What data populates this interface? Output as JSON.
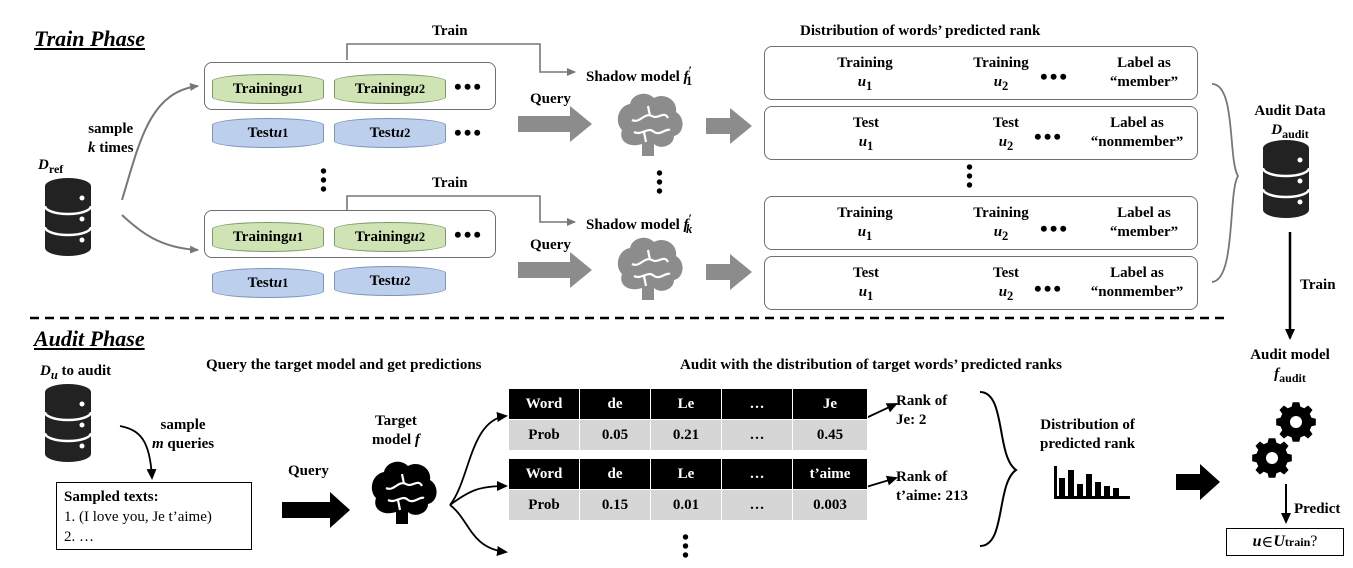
{
  "phases": {
    "train": "Train Phase",
    "audit": "Audit Phase"
  },
  "train": {
    "d_ref": "D",
    "d_ref_sub": "ref",
    "sample_line1": "sample",
    "sample_line2_var": "k",
    "sample_line2_rest": " times",
    "train_label": "Train",
    "query_label": "Query",
    "training_u1": "Training ",
    "training_u2": "Training ",
    "test_u1": "Test ",
    "test_u2": "Test ",
    "u_var": "u",
    "sub1": "1",
    "sub2": "2",
    "ellipsis": "•••",
    "shadow_model": "Shadow model ",
    "shadow_f": "f",
    "shadow_prime": "′",
    "shadow_sub1": "1",
    "shadow_subk": "k",
    "dist_title": "Distribution of words’ predicted rank",
    "rows": [
      {
        "w1": "Training",
        "w2": "Training",
        "lab1": "Label as",
        "lab2": "“member”"
      },
      {
        "w1": "Test",
        "w2": "Test",
        "lab1": "Label as",
        "lab2": "“nonmember”"
      },
      {
        "w1": "Training",
        "w2": "Training",
        "lab1": "Label as",
        "lab2": "“member”"
      },
      {
        "w1": "Test",
        "w2": "Test",
        "lab1": "Label as",
        "lab2": "“nonmember”"
      }
    ],
    "audit_data": "Audit Data",
    "audit_data_d": "D",
    "audit_data_sub": "audit",
    "train_arrow": "Train"
  },
  "audit": {
    "du": "D",
    "du_sub": "u",
    "du_rest": " to audit",
    "sample_line1": "sample",
    "sample_line2_var": "m",
    "sample_line2_rest": " queries",
    "sampled_title": "Sampled texts:",
    "sampled_1": "1. (I love you, Je t’aime)",
    "sampled_2": "2. …",
    "query": "Query",
    "target_line1": "Target",
    "target_line2": "model ",
    "target_f": "f",
    "query_heading": "Query the target model and get predictions",
    "audit_heading": "Audit with the distribution of target words’ predicted ranks",
    "table1": {
      "header": [
        "Word",
        "de",
        "Le",
        "…",
        "Je"
      ],
      "values": [
        "Prob",
        "0.05",
        "0.21",
        "…",
        "0.45"
      ]
    },
    "table2": {
      "header": [
        "Word",
        "de",
        "Le",
        "…",
        "t’aime"
      ],
      "values": [
        "Prob",
        "0.15",
        "0.01",
        "…",
        "0.003"
      ]
    },
    "rank1_line1": "Rank of",
    "rank1_line2": "Je: 2",
    "rank2_line1": "Rank of",
    "rank2_line2": "t’aime: 213",
    "dist_line1": "Distribution of",
    "dist_line2": "predicted rank",
    "audit_model": "Audit model",
    "audit_model_f": "f",
    "audit_model_sub": "audit",
    "predict": "Predict",
    "result_u": "u",
    "result_in": " ∈ ",
    "result_U": "U",
    "result_sub": "train",
    "result_q": " ?"
  },
  "colors": {
    "green": "#cfe3b5",
    "blue": "#bcd0ee",
    "gray_arrow": "#8c8c8c",
    "table_header": "#000000",
    "table_row": "#d6d6d6"
  }
}
